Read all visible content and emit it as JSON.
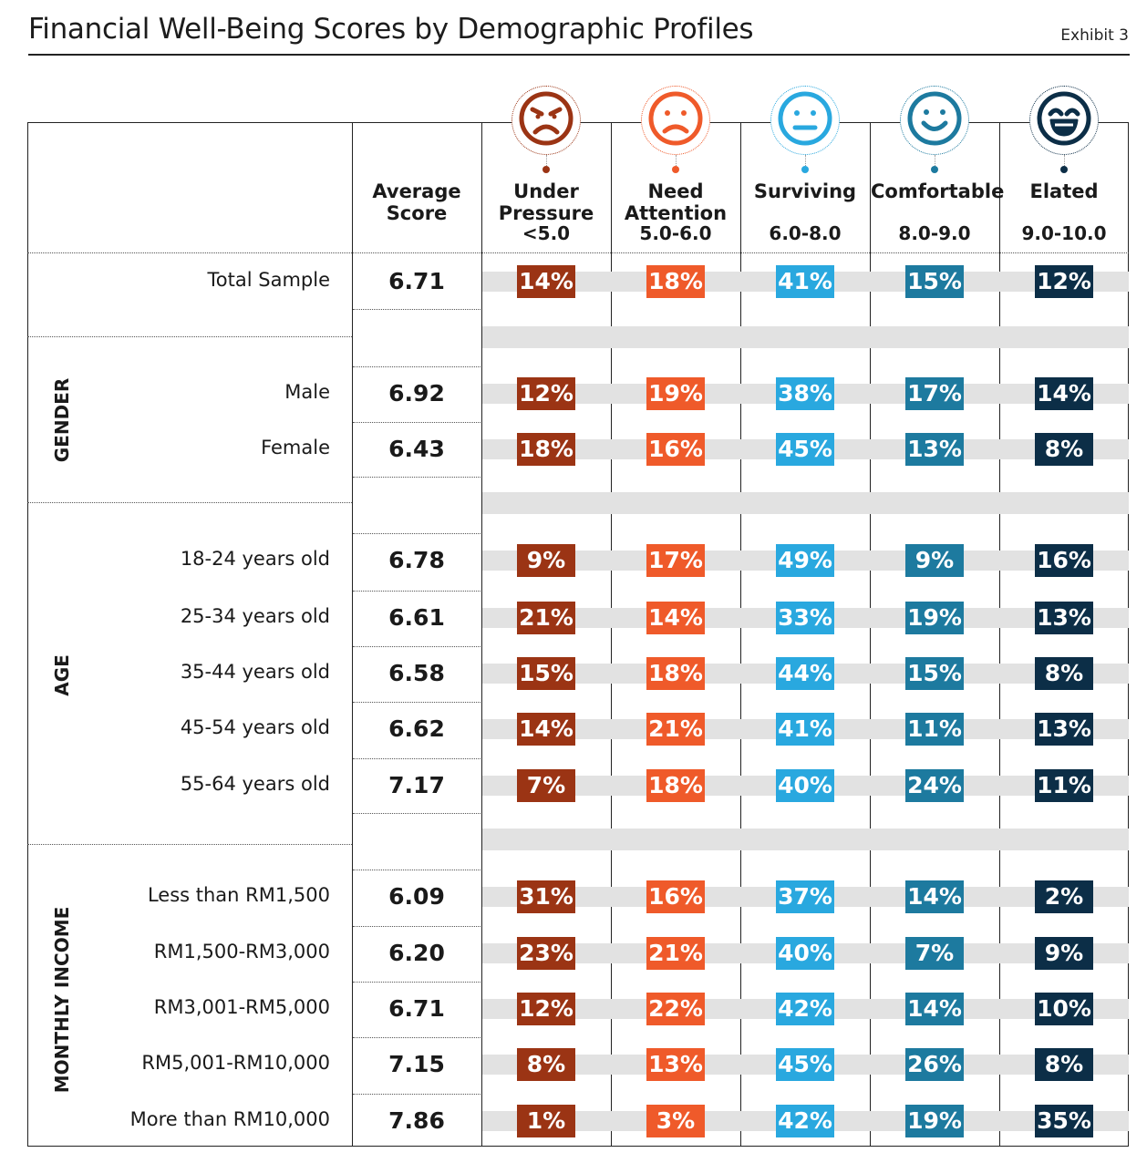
{
  "title": "Financial Well-Being Scores by Demographic Profiles",
  "exhibit": "Exhibit 3",
  "columns": {
    "average": "Average Score",
    "categories": [
      {
        "name": "Under Pressure",
        "range": "<5.0",
        "color": "#9b3414",
        "icon": "angry-face-icon"
      },
      {
        "name": "Need Attention",
        "range": "5.0-6.0",
        "color": "#ef5a2a",
        "icon": "sad-face-icon"
      },
      {
        "name": "Surviving",
        "range": "6.0-8.0",
        "color": "#29a8df",
        "icon": "neutral-face-icon"
      },
      {
        "name": "Comfortable",
        "range": "8.0-9.0",
        "color": "#1d7a9f",
        "icon": "smile-face-icon"
      },
      {
        "name": "Elated",
        "range": "9.0-10.0",
        "color": "#0c2e47",
        "icon": "grin-face-icon"
      }
    ]
  },
  "chart_data": {
    "type": "table",
    "title": "Financial Well-Being Scores by Demographic Profiles",
    "groups": [
      {
        "name": "",
        "rows": [
          {
            "label": "Total Sample",
            "score": "6.71",
            "values": [
              "14%",
              "18%",
              "41%",
              "15%",
              "12%"
            ]
          }
        ]
      },
      {
        "name": "GENDER",
        "rows": [
          {
            "label": "Male",
            "score": "6.92",
            "values": [
              "12%",
              "19%",
              "38%",
              "17%",
              "14%"
            ]
          },
          {
            "label": "Female",
            "score": "6.43",
            "values": [
              "18%",
              "16%",
              "45%",
              "13%",
              "8%"
            ]
          }
        ]
      },
      {
        "name": "AGE",
        "rows": [
          {
            "label": "18-24 years old",
            "score": "6.78",
            "values": [
              "9%",
              "17%",
              "49%",
              "9%",
              "16%"
            ]
          },
          {
            "label": "25-34 years old",
            "score": "6.61",
            "values": [
              "21%",
              "14%",
              "33%",
              "19%",
              "13%"
            ]
          },
          {
            "label": "35-44 years old",
            "score": "6.58",
            "values": [
              "15%",
              "18%",
              "44%",
              "15%",
              "8%"
            ]
          },
          {
            "label": "45-54 years old",
            "score": "6.62",
            "values": [
              "14%",
              "21%",
              "41%",
              "11%",
              "13%"
            ]
          },
          {
            "label": "55-64 years old",
            "score": "7.17",
            "values": [
              "7%",
              "18%",
              "40%",
              "24%",
              "11%"
            ]
          }
        ]
      },
      {
        "name": "MONTHLY INCOME",
        "rows": [
          {
            "label": "Less than RM1,500",
            "score": "6.09",
            "values": [
              "31%",
              "16%",
              "37%",
              "14%",
              "2%"
            ]
          },
          {
            "label": "RM1,500-RM3,000",
            "score": "6.20",
            "values": [
              "23%",
              "21%",
              "40%",
              "7%",
              "9%"
            ]
          },
          {
            "label": "RM3,001-RM5,000",
            "score": "6.71",
            "values": [
              "12%",
              "22%",
              "42%",
              "14%",
              "10%"
            ]
          },
          {
            "label": "RM5,001-RM10,000",
            "score": "7.15",
            "values": [
              "8%",
              "13%",
              "45%",
              "26%",
              "8%"
            ]
          },
          {
            "label": "More than RM10,000",
            "score": "7.86",
            "values": [
              "1%",
              "3%",
              "42%",
              "19%",
              "35%"
            ]
          }
        ]
      }
    ]
  }
}
